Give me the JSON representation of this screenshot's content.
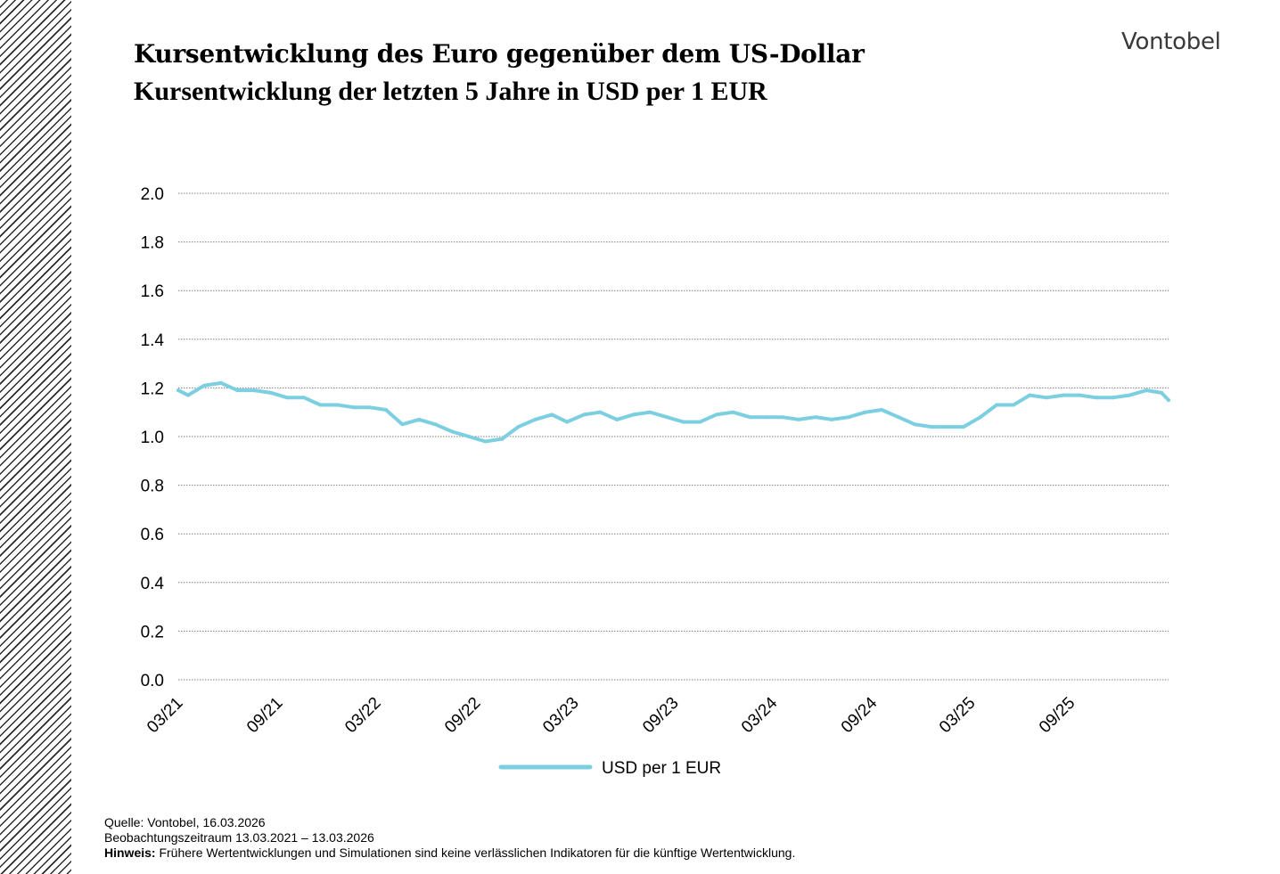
{
  "header": {
    "title": "Kursentwicklung des Euro gegenüber dem US-Dollar",
    "subtitle": "Kursentwicklung der letzten 5 Jahre in USD per 1 EUR",
    "logo": "Vontobel"
  },
  "footer": {
    "source": "Quelle: Vontobel, 16.03.2026",
    "period": "Beobachtungszeitraum  13.03.2021 – 13.03.2026",
    "note_label": "Hinweis:",
    "note_text": " Frühere Wertentwicklungen und Simulationen sind keine verlässlichen Indikatoren für die künftige Wertentwicklung."
  },
  "colors": {
    "line": "#7ccfe0",
    "grid": "#7f7f7f"
  },
  "chart_data": {
    "type": "line",
    "title": "Kursentwicklung des Euro gegenüber dem US-Dollar",
    "subtitle": "Kursentwicklung der letzten 5 Jahre in USD per 1 EUR",
    "xlabel": "",
    "ylabel": "",
    "x_range": [
      "2021-03-13",
      "2026-03-13"
    ],
    "ylim": [
      0,
      2
    ],
    "yticks": [
      "0.0",
      "0.2",
      "0.4",
      "0.6",
      "0.8",
      "1.0",
      "1.2",
      "1.4",
      "1.6",
      "1.8",
      "2.0"
    ],
    "xtick_labels": [
      "03/21",
      "09/21",
      "03/22",
      "09/22",
      "03/23",
      "09/23",
      "03/24",
      "09/24",
      "03/25",
      "09/25"
    ],
    "xtick_dates": [
      "2021-03-13",
      "2021-09-13",
      "2022-03-13",
      "2022-09-13",
      "2023-03-13",
      "2023-09-13",
      "2024-03-13",
      "2024-09-13",
      "2025-03-13",
      "2025-09-13"
    ],
    "grid": true,
    "legend_position": "bottom-center",
    "series": [
      {
        "name": "USD per 1 EUR",
        "color": "#7ccfe0",
        "points": [
          [
            "2021-03-13",
            1.19
          ],
          [
            "2021-03-31",
            1.17
          ],
          [
            "2021-04-30",
            1.21
          ],
          [
            "2021-05-31",
            1.22
          ],
          [
            "2021-06-30",
            1.19
          ],
          [
            "2021-07-31",
            1.19
          ],
          [
            "2021-08-31",
            1.18
          ],
          [
            "2021-09-30",
            1.16
          ],
          [
            "2021-10-31",
            1.16
          ],
          [
            "2021-11-30",
            1.13
          ],
          [
            "2021-12-31",
            1.13
          ],
          [
            "2022-01-31",
            1.12
          ],
          [
            "2022-02-28",
            1.12
          ],
          [
            "2022-03-31",
            1.11
          ],
          [
            "2022-04-30",
            1.05
          ],
          [
            "2022-05-31",
            1.07
          ],
          [
            "2022-06-30",
            1.05
          ],
          [
            "2022-07-31",
            1.02
          ],
          [
            "2022-08-31",
            1.0
          ],
          [
            "2022-09-30",
            0.98
          ],
          [
            "2022-10-31",
            0.99
          ],
          [
            "2022-11-30",
            1.04
          ],
          [
            "2022-12-31",
            1.07
          ],
          [
            "2023-01-31",
            1.09
          ],
          [
            "2023-02-28",
            1.06
          ],
          [
            "2023-03-31",
            1.09
          ],
          [
            "2023-04-30",
            1.1
          ],
          [
            "2023-05-31",
            1.07
          ],
          [
            "2023-06-30",
            1.09
          ],
          [
            "2023-07-31",
            1.1
          ],
          [
            "2023-08-31",
            1.08
          ],
          [
            "2023-09-30",
            1.06
          ],
          [
            "2023-10-31",
            1.06
          ],
          [
            "2023-11-30",
            1.09
          ],
          [
            "2023-12-31",
            1.1
          ],
          [
            "2024-01-31",
            1.08
          ],
          [
            "2024-02-29",
            1.08
          ],
          [
            "2024-03-31",
            1.08
          ],
          [
            "2024-04-30",
            1.07
          ],
          [
            "2024-05-31",
            1.08
          ],
          [
            "2024-06-30",
            1.07
          ],
          [
            "2024-07-31",
            1.08
          ],
          [
            "2024-08-31",
            1.1
          ],
          [
            "2024-09-30",
            1.11
          ],
          [
            "2024-10-31",
            1.08
          ],
          [
            "2024-11-30",
            1.05
          ],
          [
            "2024-12-31",
            1.04
          ],
          [
            "2025-01-31",
            1.04
          ],
          [
            "2025-02-28",
            1.04
          ],
          [
            "2025-03-31",
            1.08
          ],
          [
            "2025-04-30",
            1.13
          ],
          [
            "2025-05-31",
            1.13
          ],
          [
            "2025-06-30",
            1.17
          ],
          [
            "2025-07-31",
            1.16
          ],
          [
            "2025-08-31",
            1.17
          ],
          [
            "2025-09-30",
            1.17
          ],
          [
            "2025-10-31",
            1.16
          ],
          [
            "2025-11-30",
            1.16
          ],
          [
            "2025-12-31",
            1.17
          ],
          [
            "2026-01-31",
            1.19
          ],
          [
            "2026-02-28",
            1.18
          ],
          [
            "2026-03-13",
            1.15
          ]
        ]
      }
    ]
  }
}
